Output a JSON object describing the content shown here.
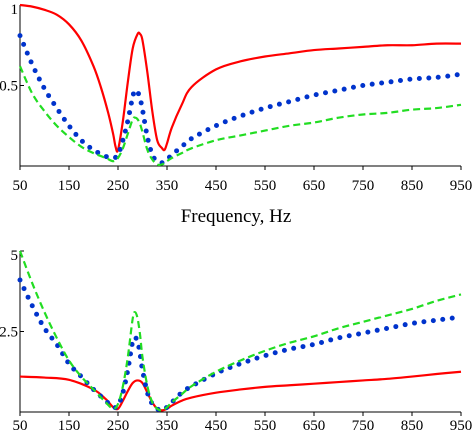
{
  "chart_data": [
    {
      "type": "line",
      "x_ticks": [
        "50",
        "150",
        "250",
        "350",
        "450",
        "550",
        "650",
        "750",
        "850",
        "950"
      ],
      "y_ticks": [
        "0.5",
        "1"
      ],
      "xlabel": "Frequency, Hz",
      "xlim": [
        50,
        950
      ],
      "ylim": [
        0,
        1
      ],
      "grid": false,
      "series": [
        {
          "color": "#ff0000",
          "style": "solid",
          "stroke_width": 2.2,
          "x": [
            50,
            75,
            100,
            125,
            150,
            175,
            200,
            215,
            230,
            240,
            245,
            250,
            260,
            270,
            280,
            290,
            295,
            300,
            310,
            320,
            330,
            340,
            345,
            350,
            360,
            380,
            400,
            450,
            500,
            550,
            600,
            650,
            700,
            750,
            800,
            850,
            900,
            950
          ],
          "y": [
            1.0,
            0.99,
            0.97,
            0.94,
            0.88,
            0.78,
            0.62,
            0.49,
            0.33,
            0.2,
            0.12,
            0.1,
            0.28,
            0.52,
            0.73,
            0.82,
            0.82,
            0.78,
            0.58,
            0.34,
            0.16,
            0.11,
            0.1,
            0.14,
            0.24,
            0.38,
            0.49,
            0.6,
            0.65,
            0.68,
            0.7,
            0.72,
            0.73,
            0.74,
            0.75,
            0.75,
            0.76,
            0.76
          ]
        },
        {
          "color": "#0033cc",
          "style": "dotted",
          "stroke_width": 5,
          "x": [
            50,
            75,
            100,
            125,
            150,
            175,
            200,
            225,
            240,
            250,
            260,
            270,
            280,
            285,
            290,
            295,
            300,
            310,
            320,
            330,
            340,
            350,
            360,
            380,
            400,
            450,
            500,
            550,
            600,
            650,
            700,
            750,
            800,
            850,
            900,
            950
          ],
          "y": [
            0.81,
            0.63,
            0.48,
            0.36,
            0.25,
            0.16,
            0.1,
            0.06,
            0.05,
            0.07,
            0.16,
            0.28,
            0.43,
            0.47,
            0.46,
            0.42,
            0.35,
            0.18,
            0.07,
            0.03,
            0.02,
            0.04,
            0.07,
            0.12,
            0.17,
            0.25,
            0.31,
            0.36,
            0.4,
            0.44,
            0.47,
            0.5,
            0.52,
            0.54,
            0.55,
            0.57
          ]
        },
        {
          "color": "#22dd22",
          "style": "dashed",
          "stroke_width": 2.2,
          "x": [
            50,
            75,
            100,
            125,
            150,
            175,
            200,
            225,
            240,
            250,
            260,
            270,
            280,
            285,
            290,
            295,
            300,
            310,
            320,
            330,
            340,
            350,
            360,
            380,
            400,
            450,
            500,
            550,
            600,
            650,
            700,
            750,
            800,
            850,
            900,
            950
          ],
          "y": [
            0.62,
            0.45,
            0.34,
            0.25,
            0.18,
            0.12,
            0.08,
            0.05,
            0.03,
            0.05,
            0.11,
            0.2,
            0.29,
            0.3,
            0.29,
            0.26,
            0.21,
            0.1,
            0.04,
            0.01,
            0.01,
            0.03,
            0.05,
            0.08,
            0.11,
            0.16,
            0.19,
            0.22,
            0.25,
            0.27,
            0.3,
            0.32,
            0.33,
            0.35,
            0.36,
            0.38
          ]
        }
      ]
    },
    {
      "type": "line",
      "x_ticks": [
        "50",
        "150",
        "250",
        "350",
        "450",
        "550",
        "650",
        "750",
        "850",
        "950"
      ],
      "y_ticks": [
        "2.5",
        "5"
      ],
      "xlim": [
        50,
        950
      ],
      "ylim": [
        0,
        5
      ],
      "grid": false,
      "series": [
        {
          "color": "#ff0000",
          "style": "solid",
          "stroke_width": 2.2,
          "x": [
            50,
            100,
            150,
            200,
            225,
            240,
            250,
            260,
            270,
            280,
            290,
            300,
            310,
            320,
            330,
            340,
            350,
            360,
            380,
            400,
            450,
            500,
            550,
            600,
            650,
            700,
            750,
            800,
            850,
            900,
            950
          ],
          "y": [
            1.1,
            1.07,
            1.0,
            0.7,
            0.4,
            0.15,
            0.1,
            0.35,
            0.65,
            0.9,
            0.98,
            0.9,
            0.6,
            0.3,
            0.1,
            0.05,
            0.1,
            0.2,
            0.35,
            0.45,
            0.6,
            0.7,
            0.78,
            0.83,
            0.88,
            0.93,
            0.98,
            1.03,
            1.1,
            1.18,
            1.25
          ]
        },
        {
          "color": "#0033cc",
          "style": "dotted",
          "stroke_width": 5,
          "x": [
            50,
            75,
            100,
            125,
            150,
            175,
            200,
            225,
            240,
            250,
            260,
            270,
            280,
            285,
            290,
            295,
            300,
            310,
            320,
            330,
            340,
            350,
            360,
            380,
            400,
            450,
            500,
            550,
            600,
            650,
            700,
            750,
            800,
            850,
            900,
            950
          ],
          "y": [
            4.1,
            3.3,
            2.6,
            2.1,
            1.5,
            1.1,
            0.7,
            0.35,
            0.15,
            0.2,
            0.6,
            1.3,
            2.2,
            2.3,
            2.2,
            1.8,
            1.3,
            0.6,
            0.25,
            0.1,
            0.05,
            0.15,
            0.3,
            0.6,
            0.8,
            1.2,
            1.5,
            1.75,
            1.95,
            2.1,
            2.3,
            2.45,
            2.6,
            2.75,
            2.85,
            2.95
          ]
        },
        {
          "color": "#22dd22",
          "style": "dashed",
          "stroke_width": 2.2,
          "x": [
            50,
            75,
            100,
            125,
            150,
            175,
            200,
            225,
            240,
            250,
            260,
            270,
            280,
            285,
            290,
            295,
            300,
            310,
            320,
            330,
            340,
            350,
            360,
            380,
            400,
            450,
            500,
            550,
            600,
            650,
            700,
            750,
            800,
            850,
            900,
            950
          ],
          "y": [
            5.0,
            4.0,
            3.1,
            2.3,
            1.6,
            1.1,
            0.7,
            0.3,
            0.1,
            0.25,
            0.8,
            1.7,
            2.9,
            3.1,
            2.9,
            2.4,
            1.7,
            0.8,
            0.3,
            0.1,
            0.05,
            0.15,
            0.3,
            0.55,
            0.8,
            1.25,
            1.6,
            1.9,
            2.15,
            2.35,
            2.6,
            2.8,
            3.0,
            3.2,
            3.45,
            3.65
          ]
        }
      ]
    }
  ]
}
